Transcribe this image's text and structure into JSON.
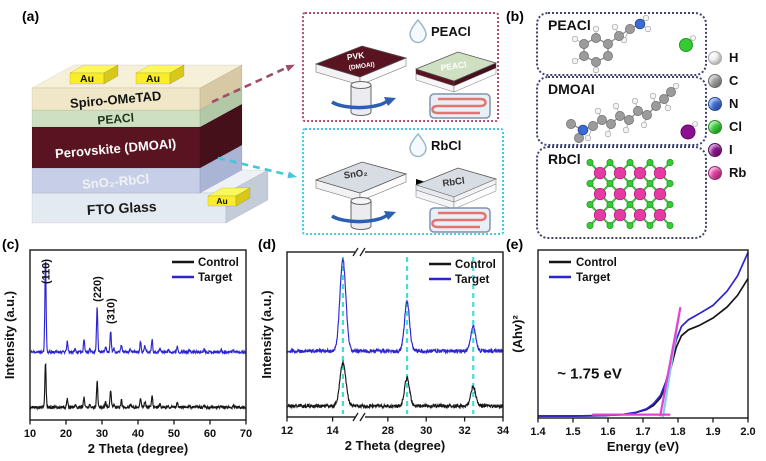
{
  "panels": {
    "a": {
      "label": "(a)",
      "device": {
        "au_label": "Au",
        "layers": [
          {
            "name": "Au",
            "color": "#f8ed26",
            "side": "#d8c81a",
            "top": "#fdf75e",
            "text": "#111111"
          },
          {
            "name": "Spiro-OMeTAD",
            "color": "#f0e7c8",
            "side": "#d6c9a4",
            "top": "#f7f0d9",
            "text": "#111111"
          },
          {
            "name": "PEACl",
            "color": "#cfe0c2",
            "side": "#b3c8a6",
            "top": "#dcead0",
            "text": "#1f3319"
          },
          {
            "name": "Perovskite (DMOAI)",
            "color": "#5a1320",
            "side": "#46101b",
            "top": "#6b1826",
            "text": "#ffffff"
          },
          {
            "name": "SnO₂-RbCl",
            "color": "#c7cfe8",
            "side": "#aab4d4",
            "top": "#d4dbee",
            "text": "#f2f2f2"
          },
          {
            "name": "FTO Glass",
            "color": "#e4eaf1",
            "side": "#c3ccd8",
            "top": "#eef2f7",
            "text": "#1a1a1a"
          }
        ]
      },
      "process_top": {
        "border_color": "#a84f6e",
        "droplet_label": "PEACl",
        "plate1_line1": "PVK",
        "plate1_line2": "(DMOAI)",
        "plate2_label": "PEACl"
      },
      "process_bottom": {
        "border_color": "#43c8da",
        "droplet_label": "RbCl",
        "plate1_label": "SnO₂",
        "plate2_label": "RbCl",
        "plate_color": "#d8dce3"
      }
    },
    "b": {
      "label": "(b)",
      "boxes": [
        {
          "title": "PEACl"
        },
        {
          "title": "DMOAI"
        },
        {
          "title": "RbCl"
        }
      ],
      "legend": [
        {
          "symbol": "H",
          "color": "#f4f4f4"
        },
        {
          "symbol": "C",
          "color": "#9b9b9b"
        },
        {
          "symbol": "N",
          "color": "#3a6cd6"
        },
        {
          "symbol": "Cl",
          "color": "#33cc33"
        },
        {
          "symbol": "I",
          "color": "#8b1190"
        },
        {
          "symbol": "Rb",
          "color": "#e53aa2"
        }
      ]
    },
    "c": {
      "label": "(c)"
    },
    "d": {
      "label": "(d)"
    },
    "e": {
      "label": "(e)"
    }
  },
  "chart_data": [
    {
      "panel": "c",
      "type": "line",
      "xlabel": "2 Theta (degree)",
      "ylabel": "Intensity (a.u.)",
      "xlim": [
        10,
        70
      ],
      "grid": false,
      "x_segments": [
        {
          "x": [
            10,
            70
          ],
          "frac": [
            0,
            1
          ]
        }
      ],
      "xticks": [
        {
          "v": 10,
          "l": "10"
        },
        {
          "v": 20,
          "l": "20"
        },
        {
          "v": 30,
          "l": "30"
        },
        {
          "v": 40,
          "l": "40"
        },
        {
          "v": 50,
          "l": "50"
        },
        {
          "v": 60,
          "l": "60"
        },
        {
          "v": 70,
          "l": "70"
        }
      ],
      "legend": {
        "pos": "tr",
        "items": [
          {
            "label": "Control",
            "color": "#161616"
          },
          {
            "label": "Target",
            "color": "#2c25cf"
          }
        ]
      },
      "peak_labels": [
        {
          "text": "(110)",
          "x": 14.3,
          "fy": 0.8
        },
        {
          "text": "(220)",
          "x": 28.65,
          "fy": 0.695
        },
        {
          "text": "(310)",
          "x": 32.4,
          "fy": 0.565
        }
      ],
      "series": [
        {
          "name": "Control",
          "color": "#161616",
          "baseline": 0.075,
          "noise": 0.008,
          "sigma": 0.17,
          "seed": 5,
          "peaks": [
            [
              14.3,
              0.26
            ],
            [
              20.35,
              0.05
            ],
            [
              22.5,
              0.015
            ],
            [
              25.0,
              0.06
            ],
            [
              26.6,
              0.018
            ],
            [
              28.65,
              0.155
            ],
            [
              31.0,
              0.03
            ],
            [
              32.4,
              0.105
            ],
            [
              33.3,
              0.018
            ],
            [
              35.4,
              0.04
            ],
            [
              37.9,
              0.018
            ],
            [
              40.7,
              0.055
            ],
            [
              41.9,
              0.035
            ],
            [
              43.9,
              0.065
            ],
            [
              46.1,
              0.018
            ],
            [
              48.4,
              0.01
            ],
            [
              50.9,
              0.03
            ],
            [
              54.2,
              0.01
            ],
            [
              58.4,
              0.015
            ],
            [
              63.1,
              0.01
            ],
            [
              66.5,
              0.009
            ]
          ]
        },
        {
          "name": "Target",
          "color": "#2c25cf",
          "baseline": 0.4,
          "noise": 0.008,
          "sigma": 0.17,
          "seed": 11,
          "peaks": [
            [
              14.3,
              0.545
            ],
            [
              20.35,
              0.06
            ],
            [
              22.5,
              0.018
            ],
            [
              25.0,
              0.075
            ],
            [
              26.6,
              0.02
            ],
            [
              28.65,
              0.265
            ],
            [
              31.0,
              0.035
            ],
            [
              32.4,
              0.125
            ],
            [
              33.3,
              0.02
            ],
            [
              35.4,
              0.045
            ],
            [
              37.9,
              0.02
            ],
            [
              40.7,
              0.065
            ],
            [
              41.9,
              0.04
            ],
            [
              43.9,
              0.075
            ],
            [
              46.1,
              0.02
            ],
            [
              48.4,
              0.012
            ],
            [
              50.9,
              0.035
            ],
            [
              54.2,
              0.012
            ],
            [
              58.4,
              0.018
            ],
            [
              63.1,
              0.012
            ],
            [
              66.5,
              0.01
            ]
          ]
        }
      ]
    },
    {
      "panel": "d",
      "type": "line",
      "xlabel": "2 Theta (degree)",
      "ylabel": "Intensity (a.u.)",
      "xlim_segments": [
        [
          12,
          15.2
        ],
        [
          26.55,
          34
        ]
      ],
      "grid": false,
      "x_segments": [
        {
          "x": [
            12,
            15.2
          ],
          "frac": [
            0,
            0.338
          ]
        },
        {
          "x": [
            26.55,
            34
          ],
          "frac": [
            0.338,
            1
          ]
        }
      ],
      "break_frac": 0.338,
      "xticks": [
        {
          "v": 12,
          "l": "12"
        },
        {
          "v": 14,
          "l": "14"
        },
        {
          "v": 28,
          "l": "28"
        },
        {
          "v": 30,
          "l": "30"
        },
        {
          "v": 32,
          "l": "32"
        },
        {
          "v": 34,
          "l": "34"
        }
      ],
      "legend": {
        "pos": "tr",
        "items": [
          {
            "label": "Control",
            "color": "#161616"
          },
          {
            "label": "Target",
            "color": "#2c25cf"
          }
        ]
      },
      "guides": {
        "color": "#3fe0d8",
        "x": [
          14.45,
          29.0,
          32.45
        ]
      },
      "series": [
        {
          "name": "Control",
          "color": "#161616",
          "baseline": 0.067,
          "noise": 0.011,
          "sigma": 0.13,
          "seed": 21,
          "peaks": [
            [
              14.45,
              0.26
            ],
            [
              29.0,
              0.17
            ],
            [
              32.45,
              0.115
            ]
          ]
        },
        {
          "name": "Target",
          "color": "#2c25cf",
          "baseline": 0.4,
          "noise": 0.011,
          "sigma": 0.13,
          "seed": 29,
          "peaks": [
            [
              14.45,
              0.55
            ],
            [
              29.0,
              0.3
            ],
            [
              32.45,
              0.15
            ]
          ]
        }
      ]
    },
    {
      "panel": "e",
      "type": "line",
      "xlabel": "Energy (eV)",
      "ylabel": "(Ahv)²",
      "xlim": [
        1.4,
        2.0
      ],
      "grid": false,
      "x_segments": [
        {
          "x": [
            1.4,
            2.0
          ],
          "frac": [
            0,
            1
          ]
        }
      ],
      "xticks": [
        {
          "v": 1.4,
          "l": "1.4"
        },
        {
          "v": 1.5,
          "l": "1.5"
        },
        {
          "v": 1.6,
          "l": "1.6"
        },
        {
          "v": 1.7,
          "l": "1.7"
        },
        {
          "v": 1.8,
          "l": "1.8"
        },
        {
          "v": 1.9,
          "l": "1.9"
        },
        {
          "v": 2.0,
          "l": "2.0"
        }
      ],
      "legend": {
        "pos": "tl",
        "items": [
          {
            "label": "Control",
            "color": "#161616"
          },
          {
            "label": "Target",
            "color": "#2c25cf"
          }
        ]
      },
      "annotation": {
        "text": "~ 1.75 eV",
        "x": 1.455,
        "fy": 0.235
      },
      "bandgap_ev": 1.75,
      "aux_lines": [
        {
          "color": "#7fd0ea",
          "x1": 1.757,
          "y1": 0.005,
          "x2": 1.802,
          "y2": 0.6,
          "width": 2.2
        },
        {
          "color": "#e243d2",
          "x1": 1.555,
          "y1": 0.02,
          "x2": 1.778,
          "y2": 0.02,
          "width": 2.2
        },
        {
          "color": "#e243d2",
          "x1": 1.749,
          "y1": 0.01,
          "x2": 1.807,
          "y2": 0.66,
          "width": 2.2
        }
      ],
      "series": [
        {
          "name": "Control",
          "color": "#161616",
          "width": 1.7,
          "points": [
            [
              1.4,
              0.012
            ],
            [
              1.5,
              0.012
            ],
            [
              1.58,
              0.014
            ],
            [
              1.64,
              0.02
            ],
            [
              1.68,
              0.032
            ],
            [
              1.71,
              0.05
            ],
            [
              1.73,
              0.075
            ],
            [
              1.75,
              0.12
            ],
            [
              1.765,
              0.19
            ],
            [
              1.78,
              0.3
            ],
            [
              1.795,
              0.42
            ],
            [
              1.81,
              0.49
            ],
            [
              1.83,
              0.525
            ],
            [
              1.86,
              0.55
            ],
            [
              1.9,
              0.595
            ],
            [
              1.94,
              0.66
            ],
            [
              1.97,
              0.73
            ],
            [
              2.0,
              0.83
            ]
          ]
        },
        {
          "name": "Target",
          "color": "#2c25cf",
          "width": 1.7,
          "points": [
            [
              1.4,
              0.012
            ],
            [
              1.5,
              0.012
            ],
            [
              1.58,
              0.014
            ],
            [
              1.64,
              0.02
            ],
            [
              1.68,
              0.034
            ],
            [
              1.71,
              0.055
            ],
            [
              1.73,
              0.085
            ],
            [
              1.75,
              0.135
            ],
            [
              1.765,
              0.215
            ],
            [
              1.78,
              0.335
            ],
            [
              1.795,
              0.465
            ],
            [
              1.81,
              0.545
            ],
            [
              1.83,
              0.585
            ],
            [
              1.86,
              0.62
            ],
            [
              1.9,
              0.67
            ],
            [
              1.94,
              0.755
            ],
            [
              1.97,
              0.845
            ],
            [
              2.0,
              0.985
            ]
          ]
        }
      ]
    }
  ]
}
